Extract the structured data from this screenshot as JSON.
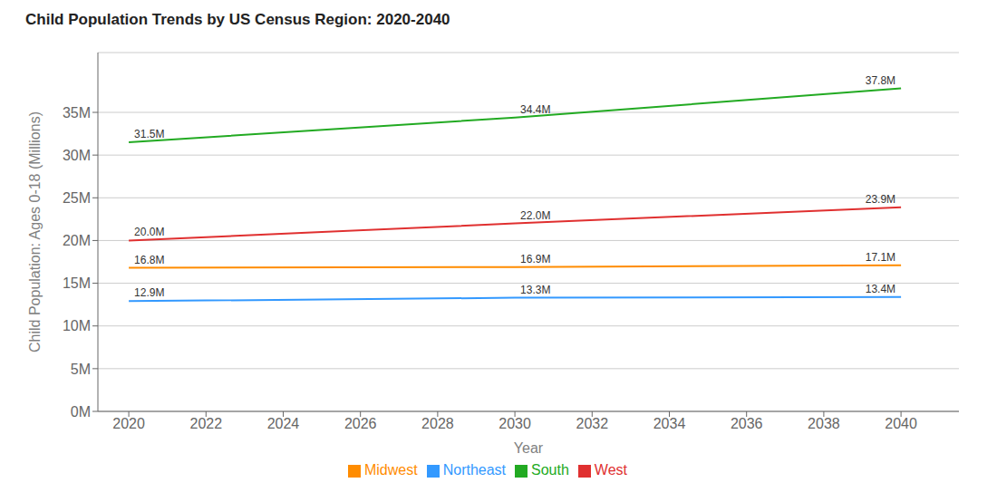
{
  "chart_data": {
    "type": "line",
    "title": "Child Population Trends by US Census Region: 2020-2040",
    "x_label": "Year",
    "y_label": "Child Population: Ages 0-18  (Millions)",
    "x": [
      2020,
      2030,
      2040
    ],
    "series": [
      {
        "name": "Midwest",
        "color": "#ff8c00",
        "values": [
          16.8,
          16.9,
          17.1
        ],
        "value_labels": [
          "16.8M",
          "16.9M",
          "17.1M"
        ]
      },
      {
        "name": "Northeast",
        "color": "#3399ff",
        "values": [
          12.9,
          13.3,
          13.4
        ],
        "value_labels": [
          "12.9M",
          "13.3M",
          "13.4M"
        ]
      },
      {
        "name": "South",
        "color": "#22aa22",
        "values": [
          31.5,
          34.4,
          37.8
        ],
        "value_labels": [
          "31.5M",
          "34.4M",
          "37.8M"
        ]
      },
      {
        "name": "West",
        "color": "#e03030",
        "values": [
          20.0,
          22.0,
          23.9
        ],
        "value_labels": [
          "20.0M",
          "22.0M",
          "23.9M"
        ]
      }
    ],
    "xlim": [
      2019.2,
      2041.5
    ],
    "xticks": [
      2020,
      2022,
      2024,
      2026,
      2028,
      2030,
      2032,
      2034,
      2036,
      2038,
      2040
    ],
    "ylim": [
      0,
      42
    ],
    "yticks": [
      {
        "value": 0,
        "label": "0M"
      },
      {
        "value": 5,
        "label": "5M"
      },
      {
        "value": 10,
        "label": "10M"
      },
      {
        "value": 15,
        "label": "15M"
      },
      {
        "value": 20,
        "label": "20M"
      },
      {
        "value": 25,
        "label": "25M"
      },
      {
        "value": 30,
        "label": "30M"
      },
      {
        "value": 35,
        "label": "35M"
      }
    ],
    "grid": "y",
    "legend": "bottom",
    "data_labels": true
  }
}
